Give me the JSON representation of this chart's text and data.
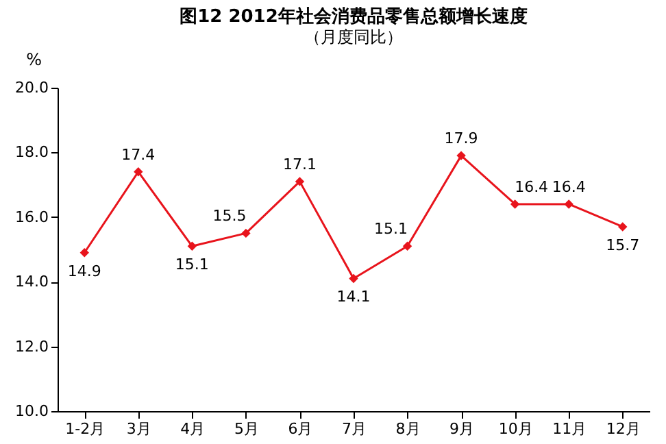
{
  "chart_data": {
    "type": "line",
    "title": "图12   2012年社会消费品零售总额增长速度",
    "subtitle": "（月度同比）",
    "ylabel": "%",
    "categories": [
      "1-2月",
      "3月",
      "4月",
      "5月",
      "6月",
      "7月",
      "8月",
      "9月",
      "10月",
      "11月",
      "12月"
    ],
    "series": [
      {
        "color": "#e8141c",
        "values": [
          14.9,
          17.4,
          15.1,
          15.5,
          17.1,
          14.1,
          15.1,
          17.9,
          16.4,
          16.4,
          15.7
        ]
      }
    ],
    "ylim": [
      10,
      20
    ],
    "yticks": [
      {
        "value": 10,
        "label": "10.0"
      },
      {
        "value": 12,
        "label": "12.0"
      },
      {
        "value": 14,
        "label": "14.0"
      },
      {
        "value": 16,
        "label": "16.0"
      },
      {
        "value": 18,
        "label": "18.0"
      },
      {
        "value": 20,
        "label": "20.0"
      }
    ],
    "marker": "diamond",
    "line_style": "solid",
    "grid": false,
    "data_labels": true
  }
}
